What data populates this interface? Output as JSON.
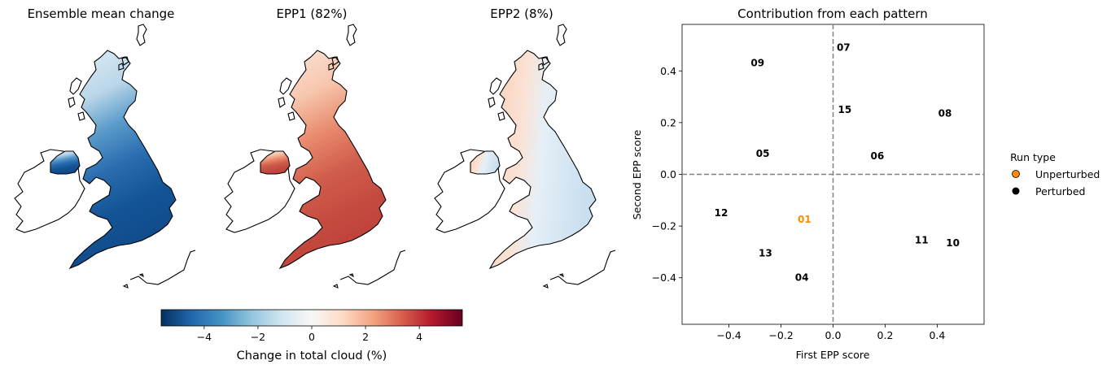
{
  "maps": [
    {
      "title": "Ensemble mean change",
      "fill": "ensemble-mean"
    },
    {
      "title": "EPP1 (82%)",
      "fill": "epp1"
    },
    {
      "title": "EPP2 (8%)",
      "fill": "epp2"
    }
  ],
  "colorbar": {
    "label": "Change in total cloud (%)",
    "ticks": [
      "−4",
      "−2",
      "0",
      "2",
      "4"
    ],
    "tick_values": [
      -4,
      -2,
      0,
      2,
      4
    ],
    "range": [
      -5.6,
      5.6
    ],
    "colormap": "RdBu_r"
  },
  "colors": {
    "unperturbed": "#ff8c00",
    "perturbed": "#000000",
    "dashed_line": "#808080"
  },
  "chart_data": {
    "type": "scatter",
    "title": "Contribution from each pattern",
    "xlabel": "First EPP score",
    "ylabel": "Second EPP score",
    "xlim": [
      -0.58,
      0.58
    ],
    "ylim": [
      -0.58,
      0.58
    ],
    "xticks": [
      -0.4,
      -0.2,
      0.0,
      0.2,
      0.4
    ],
    "xtick_labels": [
      "−0.4",
      "−0.2",
      "0.0",
      "0.2",
      "0.4"
    ],
    "yticks": [
      -0.4,
      -0.2,
      0.0,
      0.2,
      0.4
    ],
    "ytick_labels": [
      "−0.4",
      "−0.2",
      "0.0",
      "0.2",
      "0.4"
    ],
    "reference_lines": {
      "x": 0,
      "y": 0,
      "style": "dashed"
    },
    "points": [
      {
        "label": "01",
        "x": -0.11,
        "y": -0.175,
        "type": "unperturbed"
      },
      {
        "label": "04",
        "x": -0.12,
        "y": -0.4,
        "type": "perturbed"
      },
      {
        "label": "05",
        "x": -0.27,
        "y": 0.08,
        "type": "perturbed"
      },
      {
        "label": "06",
        "x": 0.17,
        "y": 0.07,
        "type": "perturbed"
      },
      {
        "label": "07",
        "x": 0.04,
        "y": 0.49,
        "type": "perturbed"
      },
      {
        "label": "08",
        "x": 0.43,
        "y": 0.235,
        "type": "perturbed"
      },
      {
        "label": "09",
        "x": -0.29,
        "y": 0.43,
        "type": "perturbed"
      },
      {
        "label": "10",
        "x": 0.46,
        "y": -0.265,
        "type": "perturbed"
      },
      {
        "label": "11",
        "x": 0.34,
        "y": -0.255,
        "type": "perturbed"
      },
      {
        "label": "12",
        "x": -0.43,
        "y": -0.15,
        "type": "perturbed"
      },
      {
        "label": "13",
        "x": -0.26,
        "y": -0.305,
        "type": "perturbed"
      },
      {
        "label": "15",
        "x": 0.045,
        "y": 0.25,
        "type": "perturbed"
      }
    ],
    "legend": {
      "title": "Run type",
      "placement": "outside-right",
      "entries": [
        {
          "label": "Unperturbed",
          "type": "unperturbed"
        },
        {
          "label": "Perturbed",
          "type": "perturbed"
        }
      ]
    }
  }
}
